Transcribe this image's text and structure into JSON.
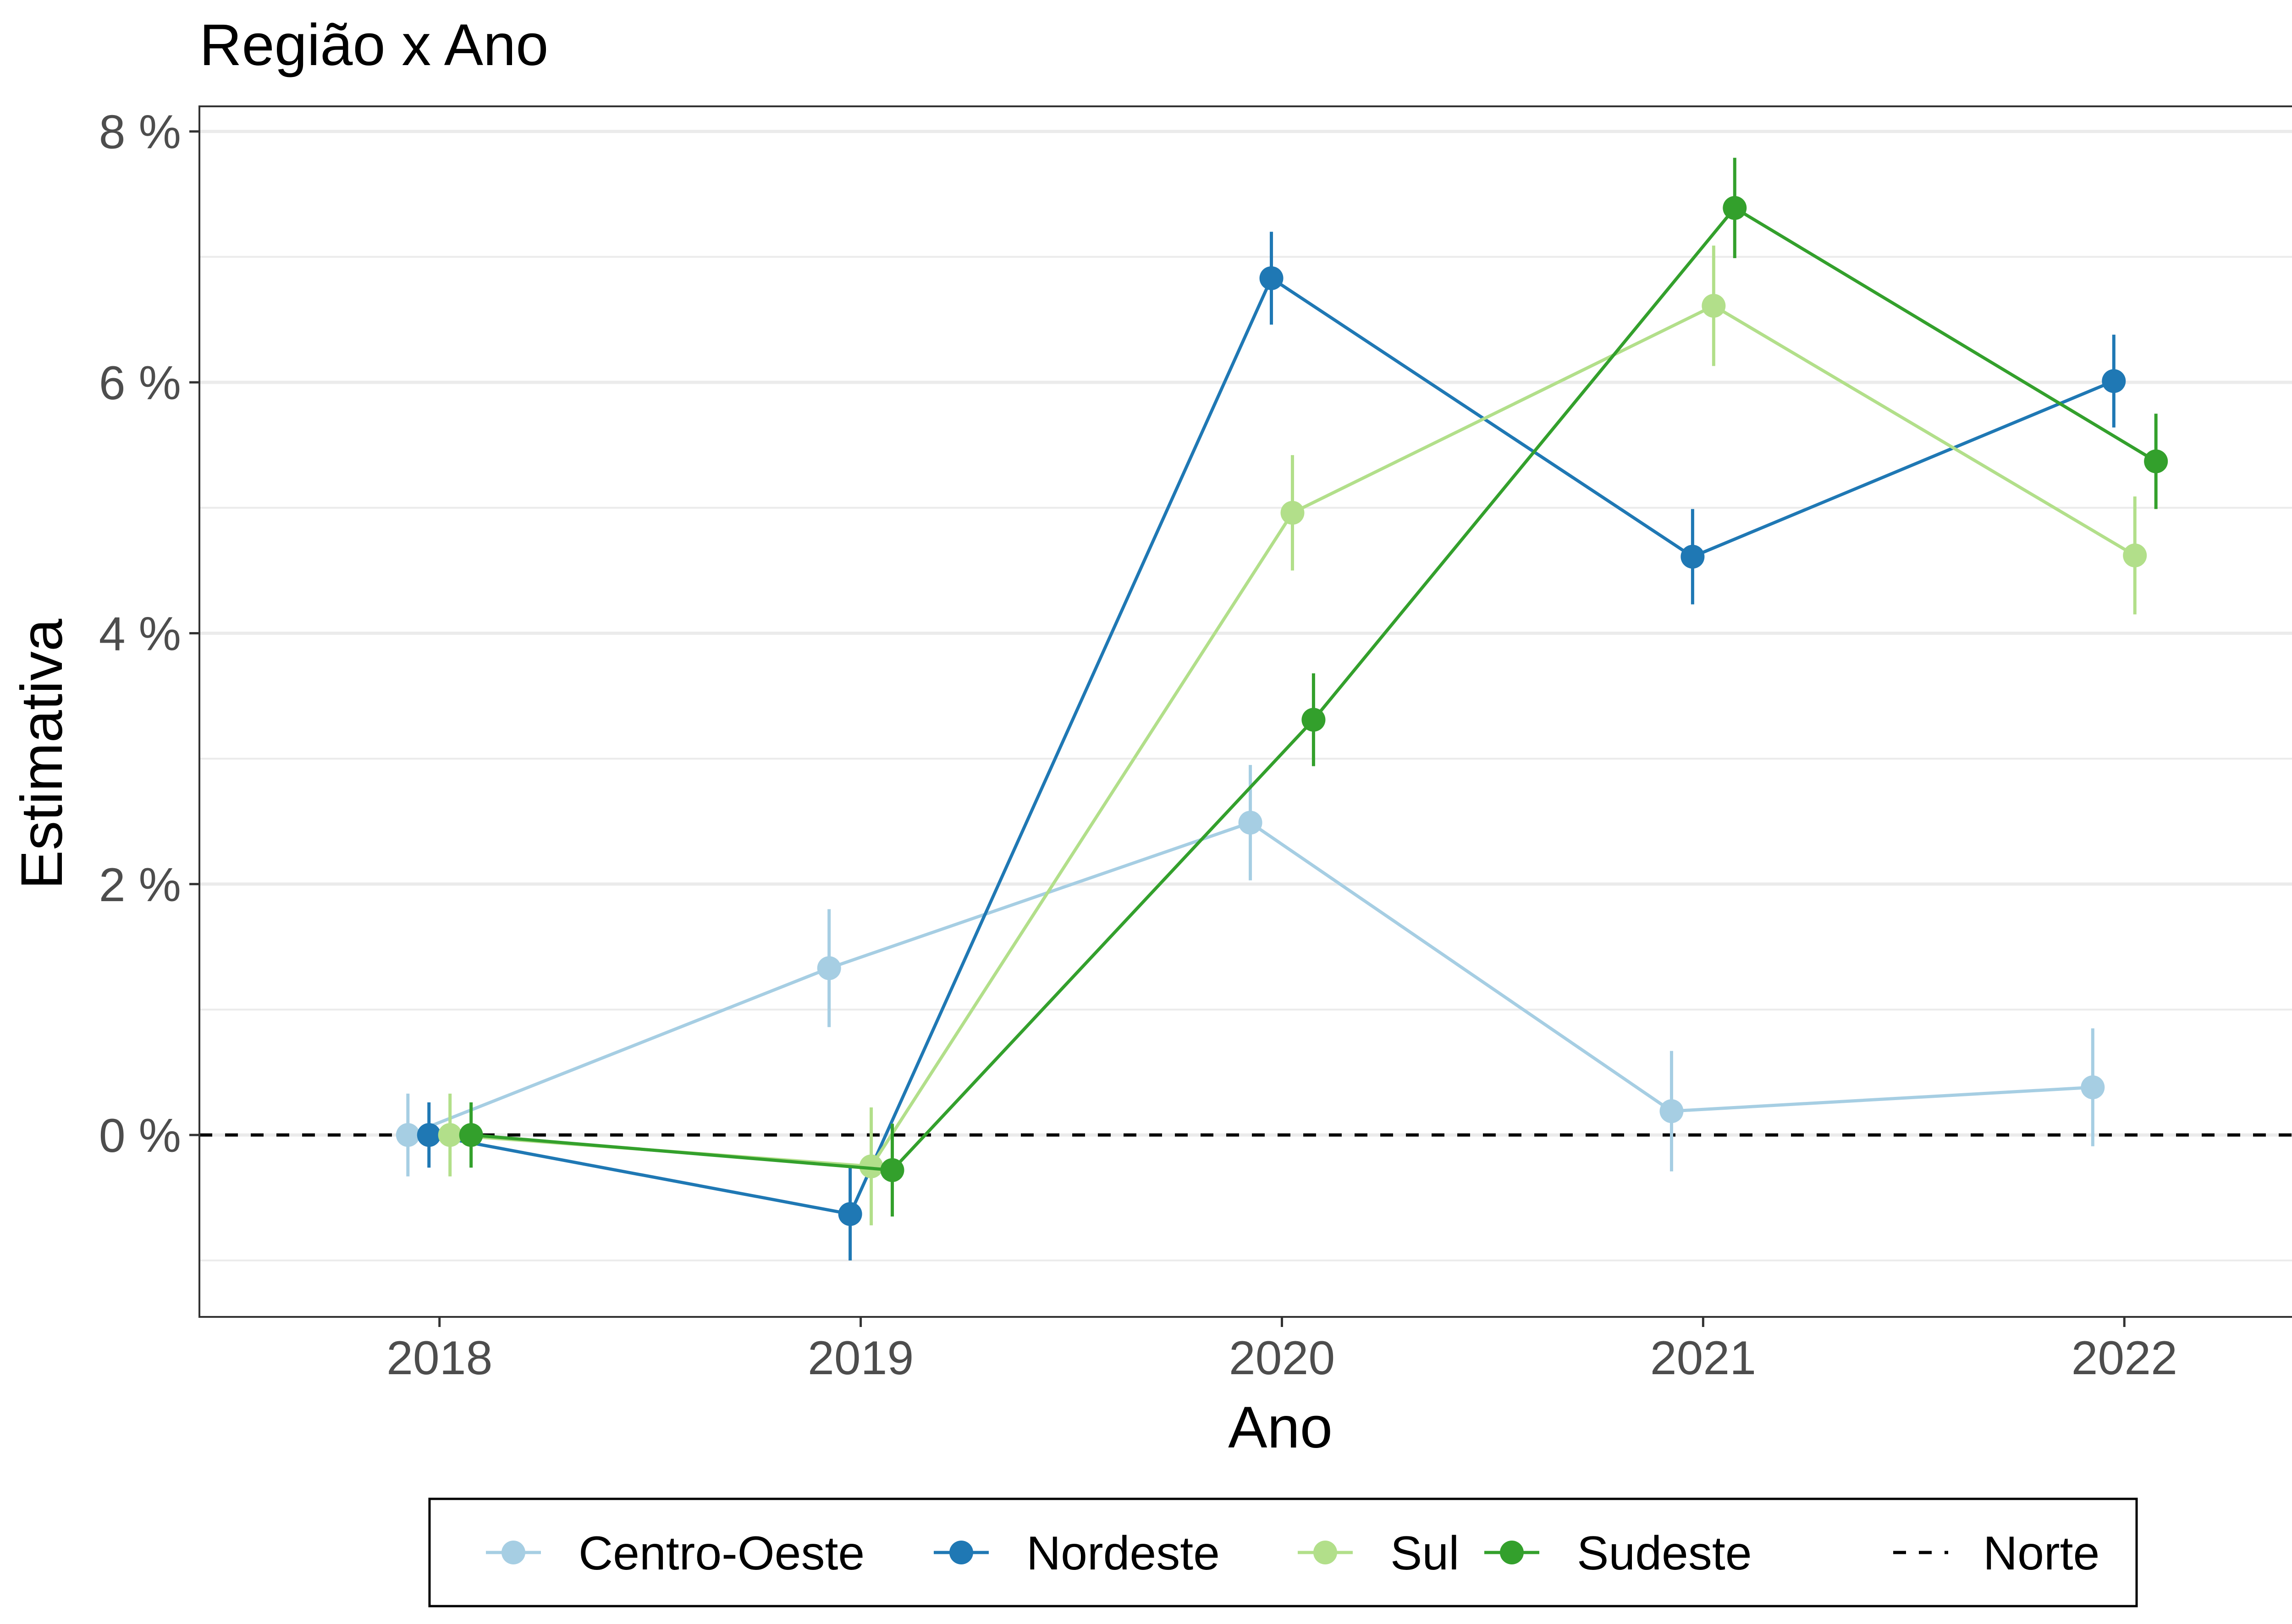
{
  "chart_data": {
    "type": "line",
    "title": "Região x Ano",
    "xlabel": "Ano",
    "ylabel": "Estimativa",
    "x": [
      2018,
      2019,
      2020,
      2021,
      2022
    ],
    "xlim": [
      2017.43,
      2022.57
    ],
    "ylim": [
      -1.45,
      8.2
    ],
    "yticks": [
      0,
      2,
      4,
      6,
      8
    ],
    "ytick_labels": [
      "0 %",
      "2 %",
      "4 %",
      "6 %",
      "8 %"
    ],
    "xtick_labels": [
      "2018",
      "2019",
      "2020",
      "2021",
      "2022"
    ],
    "grid": true,
    "legend_position": "bottom",
    "reference_line": {
      "name": "Norte",
      "value": 0,
      "style": "dashed",
      "color": "#000000"
    },
    "series": [
      {
        "name": "Centro-Oeste",
        "color": "#a6cee3",
        "values": [
          0.0,
          1.33,
          2.49,
          0.19,
          0.38
        ],
        "lower": [
          -0.33,
          0.86,
          2.03,
          -0.29,
          -0.09
        ],
        "upper": [
          0.33,
          1.8,
          2.95,
          0.67,
          0.85
        ]
      },
      {
        "name": "Nordeste",
        "color": "#1f78b4",
        "values": [
          0.0,
          -0.63,
          6.83,
          4.61,
          6.01
        ],
        "lower": [
          -0.26,
          -1.0,
          6.46,
          4.23,
          5.64
        ],
        "upper": [
          0.26,
          -0.26,
          7.2,
          4.99,
          6.38
        ]
      },
      {
        "name": "Sul",
        "color": "#b2df8a",
        "values": [
          0.0,
          -0.25,
          4.96,
          6.61,
          4.62
        ],
        "lower": [
          -0.33,
          -0.72,
          4.5,
          6.13,
          4.15
        ],
        "upper": [
          0.33,
          0.22,
          5.42,
          7.09,
          5.09
        ]
      },
      {
        "name": "Sudeste",
        "color": "#33a02c",
        "values": [
          0.0,
          -0.28,
          3.31,
          7.39,
          5.37
        ],
        "lower": [
          -0.26,
          -0.65,
          2.94,
          6.99,
          4.99
        ],
        "upper": [
          0.26,
          0.09,
          3.68,
          7.79,
          5.75
        ]
      }
    ],
    "legend": [
      "Centro-Oeste",
      "Nordeste",
      "Sul",
      "Sudeste",
      "Norte"
    ]
  }
}
